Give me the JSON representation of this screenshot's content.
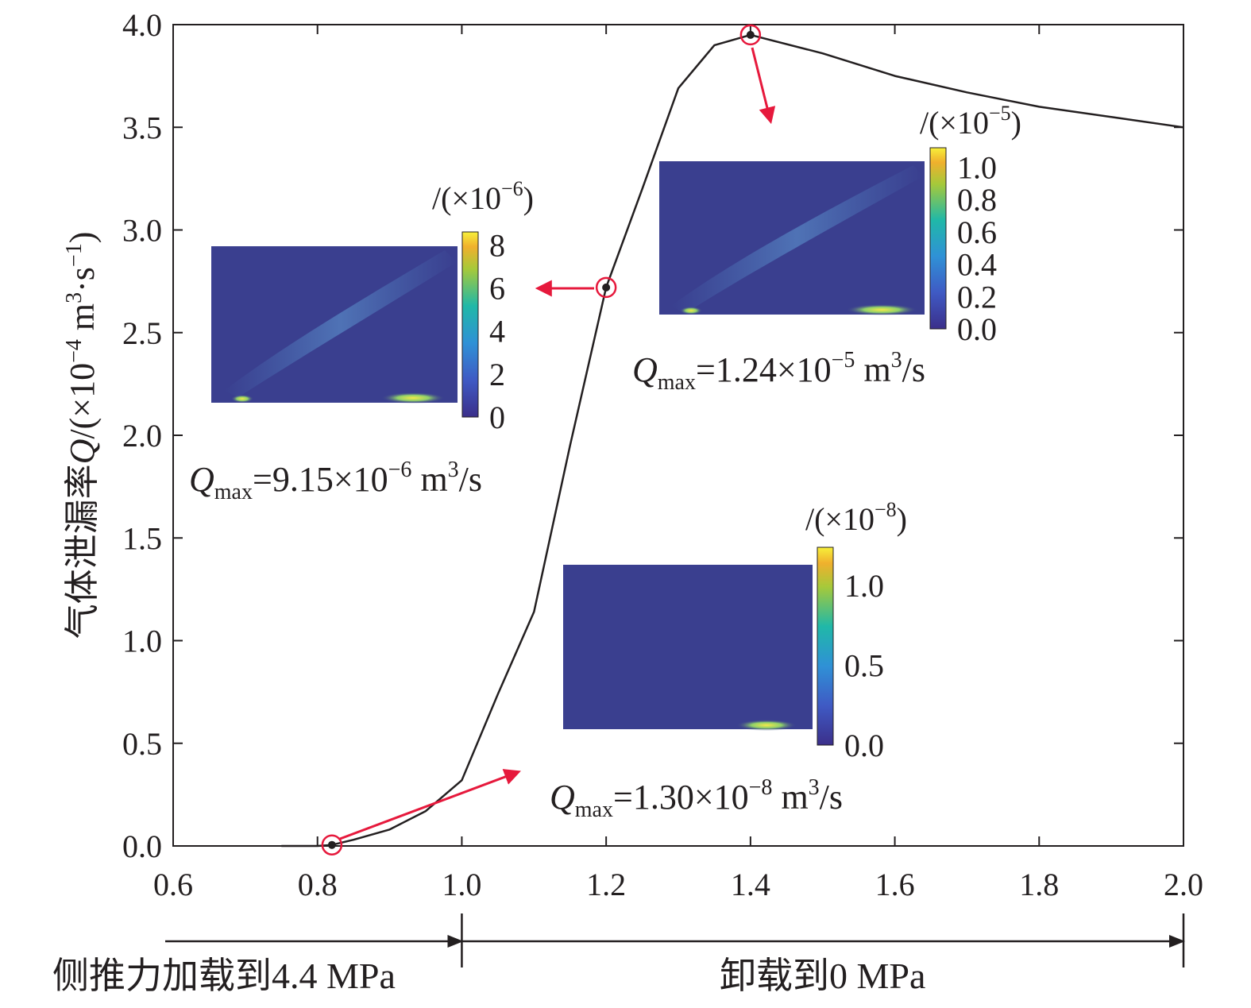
{
  "chart_data": {
    "type": "line",
    "title": "",
    "ylabel": {
      "text": "气体泄漏率",
      "symbol": "Q",
      "unit_pre": "/(×10",
      "unit_exp": "−4",
      "unit_mid": " m",
      "unit_exp2": "3",
      "unit_mid2": "·s",
      "unit_exp3": "−1",
      "unit_post": ")"
    },
    "xlim": [
      0.6,
      2.0
    ],
    "ylim": [
      0.0,
      4.0
    ],
    "x_ticks": [
      "0.6",
      "0.8",
      "1.0",
      "1.2",
      "1.4",
      "1.6",
      "1.8",
      "2.0"
    ],
    "y_ticks": [
      "0.0",
      "0.5",
      "1.0",
      "1.5",
      "2.0",
      "2.5",
      "3.0",
      "3.5",
      "4.0"
    ],
    "series": [
      {
        "x": [
          0.75,
          0.8,
          0.82,
          0.85,
          0.9,
          0.95,
          1.0,
          1.05,
          1.1,
          1.15,
          1.2,
          1.25,
          1.3,
          1.35,
          1.4,
          1.5,
          1.6,
          1.7,
          1.8,
          1.9,
          2.0
        ],
        "y": [
          0.0,
          0.0,
          0.005,
          0.03,
          0.08,
          0.17,
          0.32,
          0.74,
          1.14,
          1.95,
          2.72,
          3.2,
          3.69,
          3.9,
          3.95,
          3.86,
          3.75,
          3.67,
          3.6,
          3.55,
          3.5
        ]
      }
    ],
    "highlighted_points": [
      {
        "x": 0.82,
        "y": 0.005
      },
      {
        "x": 1.2,
        "y": 2.72
      },
      {
        "x": 1.4,
        "y": 3.95
      }
    ],
    "insets": [
      {
        "scale_label": "/(×10",
        "scale_exp": "−6",
        "scale_close": ")",
        "colorbar_ticks": [
          "8",
          "6",
          "4",
          "2",
          "0"
        ],
        "qmax_symbol": "Q",
        "qmax_sub": "max",
        "qmax_value": "=9.15×10",
        "qmax_exp": "−6",
        "qmax_unit": " m",
        "qmax_unit_exp": "3",
        "qmax_unit_post": "/s"
      },
      {
        "scale_label": "/(×10",
        "scale_exp": "−5",
        "scale_close": ")",
        "colorbar_ticks": [
          "1.0",
          "0.8",
          "0.6",
          "0.4",
          "0.2",
          "0.0"
        ],
        "qmax_symbol": "Q",
        "qmax_sub": "max",
        "qmax_value": "=1.24×10",
        "qmax_exp": "−5",
        "qmax_unit": " m",
        "qmax_unit_exp": "3",
        "qmax_unit_post": "/s"
      },
      {
        "scale_label": "/(×10",
        "scale_exp": "−8",
        "scale_close": ")",
        "colorbar_ticks": [
          "1.0",
          "0.5",
          "0.0"
        ],
        "qmax_symbol": "Q",
        "qmax_sub": "max",
        "qmax_value": "=1.30×10",
        "qmax_exp": "−8",
        "qmax_unit": " m",
        "qmax_unit_exp": "3",
        "qmax_unit_post": "/s"
      }
    ],
    "stages": [
      {
        "label": "侧推力加载到4.4 MPa",
        "x_start": 0.6,
        "x_end": 1.0
      },
      {
        "label": "卸载到0 MPa",
        "x_start": 1.0,
        "x_end": 2.0
      }
    ],
    "colors": {
      "line": "#231f20",
      "arrow": "#e6193c",
      "field_bg": "#3a3f8f",
      "field_hot": "#f5e94a"
    }
  }
}
